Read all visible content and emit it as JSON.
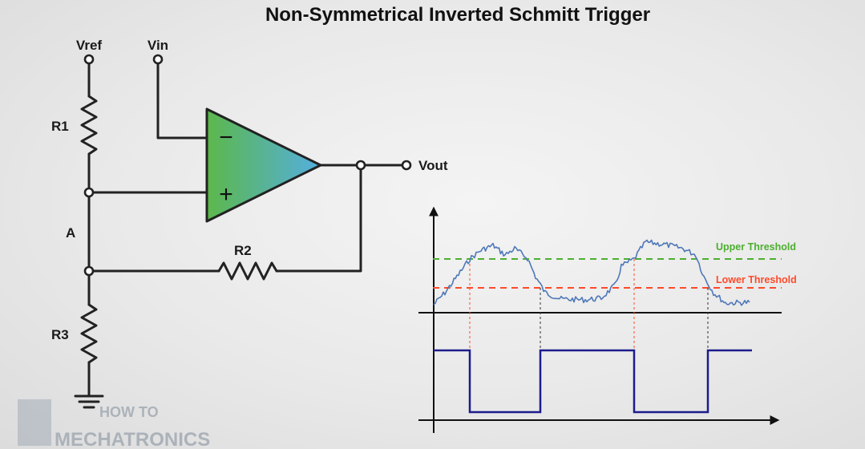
{
  "title": "Non-Symmetrical Inverted Schmitt Trigger",
  "circuit": {
    "vref_label": "Vref",
    "vin_label": "Vin",
    "vout_label": "Vout",
    "r1_label": "R1",
    "r2_label": "R2",
    "r3_label": "R3",
    "node_label": "A",
    "opamp_minus": "−",
    "opamp_plus": "+"
  },
  "graph": {
    "upper_label": "Upper Threshold",
    "lower_label": "Lower Threshold",
    "colors": {
      "upper": "#4caf2f",
      "lower": "#ff4a2a",
      "signal": "#4f78b8",
      "output": "#1c1c8c"
    }
  },
  "logo": {
    "line1": "HOW TO",
    "line2": "MECHATRONICS"
  }
}
